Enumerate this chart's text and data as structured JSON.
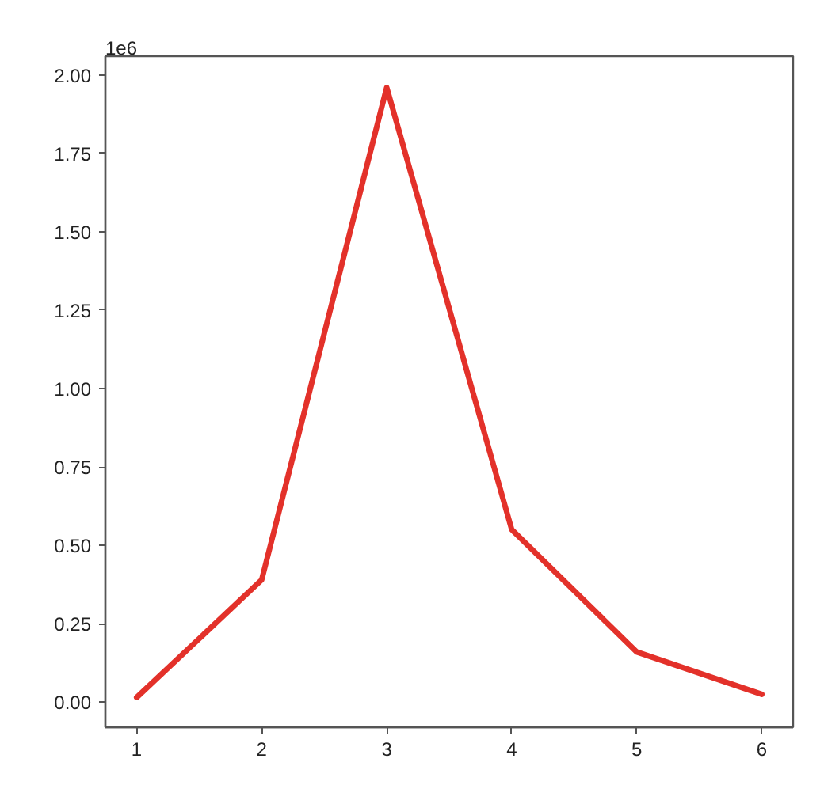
{
  "chart_data": {
    "type": "line",
    "x": [
      1,
      2,
      3,
      4,
      5,
      6
    ],
    "series": [
      {
        "color": "#e3312a",
        "values": [
          0.015,
          0.39,
          1.96,
          0.55,
          0.16,
          0.025
        ]
      }
    ],
    "xlim": [
      0.75,
      6.25
    ],
    "xticks": [
      1,
      2,
      3,
      4,
      5,
      6
    ],
    "ylim": [
      -0.08,
      2.06
    ],
    "yticks": [
      {
        "value": 0,
        "label": "0.00"
      },
      0.25,
      {
        "value": 0.5,
        "label": "0.50"
      },
      0.75,
      {
        "value": 1,
        "label": "1.00"
      },
      1.25,
      {
        "value": 1.5,
        "label": "1.50"
      },
      1.75,
      {
        "value": 2,
        "label": "2.00"
      }
    ],
    "annotations": [
      "1e6"
    ],
    "line_style": "solid"
  }
}
